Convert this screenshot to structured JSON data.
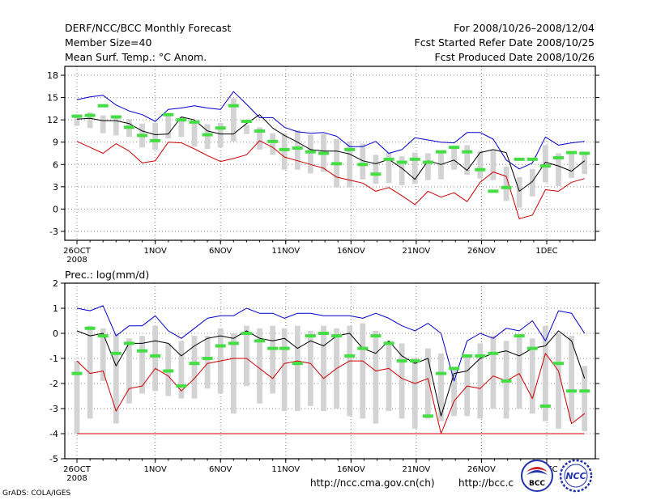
{
  "header": {
    "title": "DERF/NCC/BCC Monthly Forecast",
    "member_size": "Member Size=40",
    "variable": "Mean Surf. Temp.: °C Anom.",
    "period": "For 2008/10/26–2008/12/04",
    "started": "Fcst Started Refer Date 2008/10/25",
    "produced": "Fcst Produced Date 2008/10/26"
  },
  "footer": {
    "credit": "GrADS: COLA/IGES",
    "url1": "http://ncc.cma.gov.cn(ch)",
    "url2": "http://bcc.c",
    "logo1_text": "BCC",
    "logo2_text": "NCC"
  },
  "colors": {
    "box": "#d3d3d6",
    "upper": "#0000cc",
    "lower": "#cc0000",
    "mean": "#000000",
    "obs": "#44dd44",
    "grid": "#888888"
  },
  "chart_data": [
    {
      "type": "line",
      "title": "Mean Surf. Temp.: °C Anom.",
      "ylim": [
        -4.2,
        19.2
      ],
      "yticks": [
        -3,
        0,
        3,
        6,
        9,
        12,
        15,
        18
      ],
      "ytick_labels": [
        "-3",
        "0",
        "3",
        "6",
        "9",
        "12",
        "15",
        "18"
      ],
      "xticks": [
        0,
        6,
        11,
        16,
        21,
        26,
        31,
        36
      ],
      "xtick_labels": [
        "26OCT",
        "1NOV",
        "6NOV",
        "11NOV",
        "16NOV",
        "21NOV",
        "26NOV",
        "1DEC"
      ],
      "xsub_label": "2008",
      "x": [
        0,
        1,
        2,
        3,
        4,
        5,
        6,
        7,
        8,
        9,
        10,
        11,
        12,
        13,
        14,
        15,
        15.9,
        16.9,
        17.9,
        18.9,
        19.9,
        20.9,
        21.9,
        22.9,
        23.9,
        24.9,
        25.9,
        26.9,
        27.9,
        28.9,
        29.9,
        30.9,
        31.9,
        32.9,
        33.9,
        34.9,
        35.9,
        36.9,
        37.9,
        38.9
      ],
      "series": [
        {
          "name": "upper",
          "values": [
            14.7,
            15.1,
            15.3,
            14.0,
            13.2,
            12.7,
            11.8,
            13.4,
            13.6,
            13.9,
            13.6,
            13.4,
            15.8,
            14.1,
            12.3,
            12.3,
            11.0,
            10.4,
            10.2,
            10.3,
            9.8,
            8.4,
            8.4,
            9.1,
            7.5,
            8.0,
            9.6,
            9.3,
            9.0,
            8.9,
            10.3,
            10.3,
            9.4,
            6.6,
            5.4,
            6.2,
            9.7,
            8.6,
            8.9,
            9.1
          ]
        },
        {
          "name": "mean",
          "values": [
            12.1,
            12.2,
            11.9,
            11.9,
            11.5,
            10.5,
            10.0,
            10.1,
            12.4,
            12.0,
            10.5,
            10.1,
            10.1,
            11.5,
            12.7,
            10.9,
            9.9,
            9.0,
            8.0,
            7.8,
            7.8,
            7.4,
            6.5,
            6.1,
            6.7,
            5.5,
            4.0,
            6.5,
            6.0,
            6.6,
            5.2,
            7.6,
            8.0,
            7.6,
            2.4,
            3.7,
            6.3,
            5.8,
            5.1,
            6.5
          ]
        },
        {
          "name": "lower",
          "values": [
            9.1,
            8.3,
            7.5,
            8.8,
            7.8,
            6.2,
            6.5,
            9.0,
            8.9,
            8.1,
            7.2,
            6.4,
            6.8,
            7.3,
            9.2,
            8.3,
            7.0,
            6.5,
            6.0,
            5.5,
            4.3,
            3.9,
            3.5,
            2.4,
            2.9,
            1.8,
            0.6,
            2.4,
            1.6,
            2.2,
            1.0,
            3.6,
            5.0,
            4.4,
            -1.3,
            -0.8,
            2.6,
            2.4,
            3.6,
            4.1
          ]
        },
        {
          "name": "obs",
          "values": [
            12.5,
            12.6,
            13.9,
            12.4,
            11.0,
            9.9,
            9.2,
            12.7,
            12.0,
            11.7,
            10.0,
            10.9,
            13.9,
            11.8,
            10.5,
            9.1,
            8.0,
            8.2,
            7.7,
            7.5,
            6.1,
            8.0,
            6.0,
            4.7,
            6.7,
            6.3,
            6.7,
            6.3,
            7.7,
            8.3,
            7.7,
            5.3,
            2.4,
            2.9,
            6.7,
            6.7,
            5.8,
            6.9,
            7.6,
            7.5
          ]
        },
        {
          "name": "box_hi",
          "values": [
            12.6,
            13.0,
            12.6,
            12.5,
            12.1,
            11.5,
            11.6,
            12.6,
            12.4,
            11.5,
            11.4,
            11.6,
            14.9,
            11.3,
            11.0,
            10.2,
            10.2,
            10.6,
            10.0,
            10.1,
            9.4,
            9.1,
            8.8,
            7.3,
            7.6,
            7.1,
            7.6,
            7.5,
            7.5,
            8.2,
            8.6,
            7.8,
            7.9,
            5.7,
            4.3,
            5.4,
            8.6,
            7.5,
            7.4,
            7.6
          ]
        },
        {
          "name": "box_lo",
          "values": [
            11.2,
            10.9,
            10.2,
            9.9,
            9.7,
            8.3,
            8.0,
            9.5,
            9.7,
            8.4,
            8.1,
            8.3,
            9.1,
            10.1,
            8.0,
            7.3,
            5.3,
            5.3,
            4.8,
            5.0,
            2.9,
            2.9,
            4.0,
            3.4,
            3.5,
            3.2,
            3.4,
            3.9,
            4.0,
            5.3,
            4.6,
            4.1,
            3.9,
            1.1,
            0.2,
            1.7,
            3.6,
            3.1,
            4.2,
            4.7
          ]
        }
      ]
    },
    {
      "type": "line",
      "title": "Prec.: log(mm/d)",
      "ylim": [
        -5,
        2
      ],
      "yticks": [
        -5,
        -4,
        -3,
        -2,
        -1,
        0,
        1,
        2
      ],
      "ytick_labels": [
        "-5",
        "-4",
        "-3",
        "-2",
        "-1",
        "0",
        "1",
        "2"
      ],
      "xticks": [
        0,
        6,
        11,
        16,
        21,
        26,
        31,
        36
      ],
      "xtick_labels": [
        "26OCT",
        "1NOV",
        "6NOV",
        "11NOV",
        "16NOV",
        "21NOV",
        "26NOV",
        "1DEC"
      ],
      "xsub_label": "2008",
      "x": [
        0,
        1,
        2,
        3,
        4,
        5,
        6,
        7,
        8,
        9,
        10,
        11,
        12,
        13,
        14,
        15,
        15.9,
        16.9,
        17.9,
        18.9,
        19.9,
        20.9,
        21.9,
        22.9,
        23.9,
        24.9,
        25.9,
        26.9,
        27.9,
        28.9,
        29.9,
        30.9,
        31.9,
        32.9,
        33.9,
        34.9,
        35.9,
        36.9,
        37.9,
        38.9
      ],
      "series": [
        {
          "name": "upper",
          "values": [
            1.0,
            0.9,
            1.1,
            -0.1,
            0.3,
            0.3,
            0.7,
            0.1,
            -0.2,
            0.2,
            0.6,
            0.7,
            0.7,
            1.0,
            0.8,
            0.8,
            0.6,
            0.8,
            0.8,
            0.7,
            0.7,
            0.7,
            0.6,
            0.8,
            0.6,
            0.3,
            0.1,
            0.4,
            0.0,
            -1.9,
            -0.3,
            0.0,
            -0.2,
            0.2,
            0.1,
            0.5,
            -0.3,
            0.9,
            0.8,
            0.0
          ]
        },
        {
          "name": "mean",
          "values": [
            0.1,
            -0.1,
            0.0,
            -1.3,
            -0.4,
            -0.4,
            -0.3,
            -0.4,
            -0.9,
            -0.5,
            -0.2,
            -0.1,
            -0.2,
            0.1,
            -0.2,
            -0.3,
            -0.2,
            -0.6,
            -0.3,
            -0.5,
            -0.1,
            0.0,
            -0.6,
            -0.8,
            -0.3,
            -0.9,
            -1.2,
            -1.0,
            -3.3,
            -1.6,
            -1.5,
            -1.0,
            -0.8,
            -0.7,
            -0.9,
            -0.6,
            -0.5,
            0.1,
            -0.3,
            -1.8
          ]
        },
        {
          "name": "lower",
          "values": [
            -1.1,
            -1.6,
            -1.5,
            -3.1,
            -2.2,
            -2.1,
            -1.4,
            -1.7,
            -2.3,
            -1.8,
            -1.2,
            -1.1,
            -1.0,
            -1.0,
            -1.4,
            -1.8,
            -1.2,
            -1.1,
            -1.2,
            -1.8,
            -1.4,
            -1.1,
            -1.1,
            -1.5,
            -1.4,
            -1.8,
            -2.0,
            -1.8,
            -4.0,
            -2.7,
            -2.1,
            -2.2,
            -1.7,
            -1.9,
            -1.6,
            -2.6,
            -0.8,
            -1.5,
            -3.6,
            -3.2
          ]
        },
        {
          "name": "obs",
          "values": [
            -1.6,
            0.2,
            -0.1,
            -0.8,
            -0.4,
            -0.7,
            -0.9,
            -1.5,
            -2.1,
            -1.2,
            -1.0,
            -0.5,
            -0.4,
            0.0,
            -0.3,
            -0.6,
            -0.6,
            -1.2,
            -0.1,
            0.0,
            -0.1,
            -0.9,
            -0.6,
            -0.1,
            -0.4,
            -1.1,
            -1.1,
            -3.3,
            -1.6,
            -1.4,
            -0.9,
            -0.9,
            -0.8,
            -1.9,
            -0.1,
            -0.6,
            -2.9,
            -1.2,
            -2.3,
            -2.3
          ]
        },
        {
          "name": "box_hi",
          "values": [
            -1.1,
            0.3,
            0.2,
            0.0,
            -0.2,
            -0.1,
            0.3,
            -0.4,
            -0.3,
            -0.1,
            -0.1,
            0.2,
            0.0,
            0.3,
            0.2,
            0.3,
            0.2,
            0.3,
            0.1,
            0.3,
            0.2,
            0.3,
            0.4,
            0.1,
            -0.3,
            -0.4,
            -1.0,
            -0.6,
            -0.8,
            -1.4,
            -0.9,
            -0.4,
            -0.1,
            -0.3,
            -0.1,
            -0.2,
            0.3,
            0.0,
            -0.1,
            -1.3
          ]
        },
        {
          "name": "box_lo",
          "values": [
            -4.0,
            -3.4,
            -1.9,
            -3.6,
            -2.8,
            -2.4,
            -2.3,
            -2.5,
            -2.6,
            -2.6,
            -2.2,
            -2.4,
            -3.2,
            -2.1,
            -2.8,
            -2.4,
            -3.1,
            -3.1,
            -2.9,
            -3.1,
            -3.0,
            -3.3,
            -3.4,
            -3.6,
            -3.1,
            -3.4,
            -3.8,
            -3.4,
            -3.5,
            -3.3,
            -3.3,
            -3.4,
            -3.0,
            -3.4,
            -3.0,
            -3.2,
            -3.5,
            -3.8,
            -3.5,
            -3.9
          ]
        }
      ],
      "baseline": -4
    }
  ]
}
